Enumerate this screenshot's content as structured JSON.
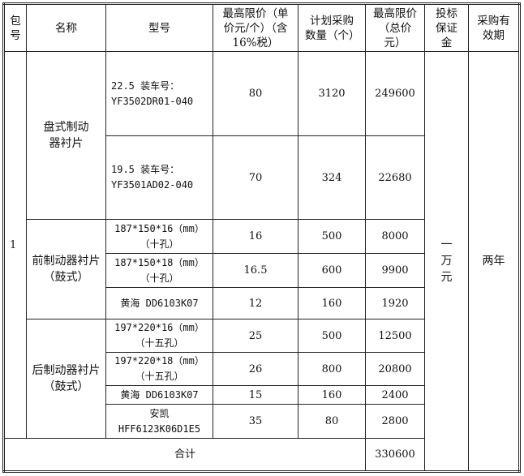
{
  "headers": {
    "package_no": "包号",
    "name": "名称",
    "model": "型号",
    "max_unit_price": "最高限价（单价元/个）（含 16%税）",
    "planned_qty": "计划采购数量（个）",
    "max_total_price": "最高限价（总价元）",
    "bid_bond": "投标保证金",
    "validity": "采购有效期"
  },
  "package_no": "1",
  "bid_bond": "一万元",
  "validity": "两年",
  "groups": [
    {
      "name": "盘式制动器衬片"
    },
    {
      "name": "前制动器衬片（鼓式）"
    },
    {
      "name": "后制动器衬片（鼓式）"
    }
  ],
  "rows": [
    {
      "model": "22.5  装车号：YF3502DR01-040",
      "unit_price": "80",
      "qty": "3120",
      "total": "249600"
    },
    {
      "model": "19.5  装车号：YF3501AD02-040",
      "unit_price": "70",
      "qty": "324",
      "total": "22680"
    },
    {
      "model": "187*150*16（mm）（十孔）",
      "unit_price": "16",
      "qty": "500",
      "total": "8000"
    },
    {
      "model": "187*150*18（mm）（十孔）",
      "unit_price": "16.5",
      "qty": "600",
      "total": "9900"
    },
    {
      "model": "黄海 DD6103K07",
      "unit_price": "12",
      "qty": "160",
      "total": "1920"
    },
    {
      "model": "197*220*16（mm）（十五孔）",
      "unit_price": "25",
      "qty": "500",
      "total": "12500"
    },
    {
      "model": "197*220*18（mm）（十五孔）",
      "unit_price": "26",
      "qty": "800",
      "total": "20800"
    },
    {
      "model": "黄海 DD6103K07",
      "unit_price": "15",
      "qty": "160",
      "total": "2400"
    },
    {
      "model": "安凯 HFF6123K06D1E5",
      "unit_price": "35",
      "qty": "80",
      "total": "2800"
    }
  ],
  "total": {
    "label": "合计",
    "value": "330600"
  }
}
